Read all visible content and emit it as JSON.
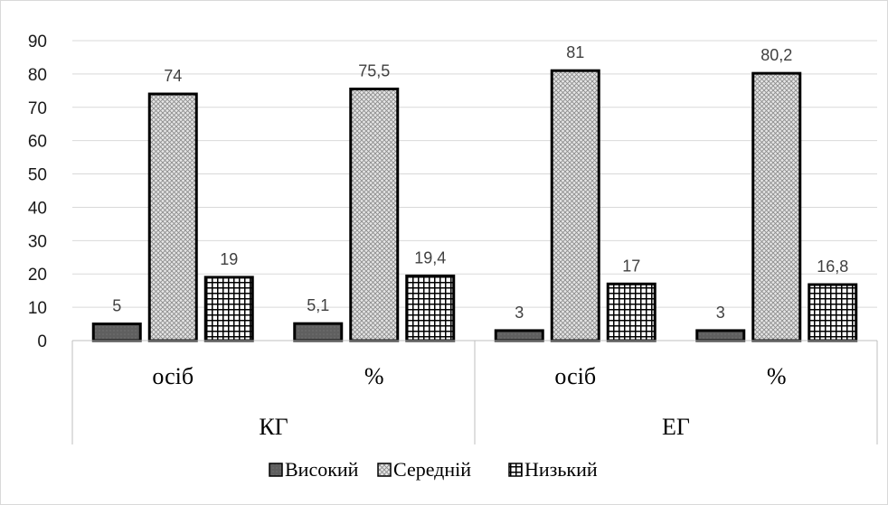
{
  "chart_data": {
    "type": "bar",
    "groups": [
      "КГ",
      "ЕГ"
    ],
    "categories": [
      "осіб",
      "%",
      "осіб",
      "%"
    ],
    "category_groups": [
      "КГ",
      "КГ",
      "ЕГ",
      "ЕГ"
    ],
    "series": [
      {
        "name": "Високий",
        "values": [
          5,
          5.1,
          3,
          3
        ],
        "labels": [
          "5",
          "5,1",
          "3",
          "3"
        ],
        "pattern": "dark",
        "color": "#595959"
      },
      {
        "name": "Середній",
        "values": [
          74,
          75.5,
          81,
          80.2
        ],
        "labels": [
          "74",
          "75,5",
          "81",
          "80,2"
        ],
        "pattern": "crosshatch",
        "color": "#d0d0d0"
      },
      {
        "name": "Низький",
        "values": [
          19,
          19.4,
          17,
          16.8
        ],
        "labels": [
          "19",
          "19,4",
          "17",
          "16,8"
        ],
        "pattern": "grid",
        "color": "#000000"
      }
    ],
    "ylim": [
      0,
      90
    ],
    "yticks": [
      0,
      10,
      20,
      30,
      40,
      50,
      60,
      70,
      80,
      90
    ],
    "grid": true,
    "legend": "bottom"
  }
}
